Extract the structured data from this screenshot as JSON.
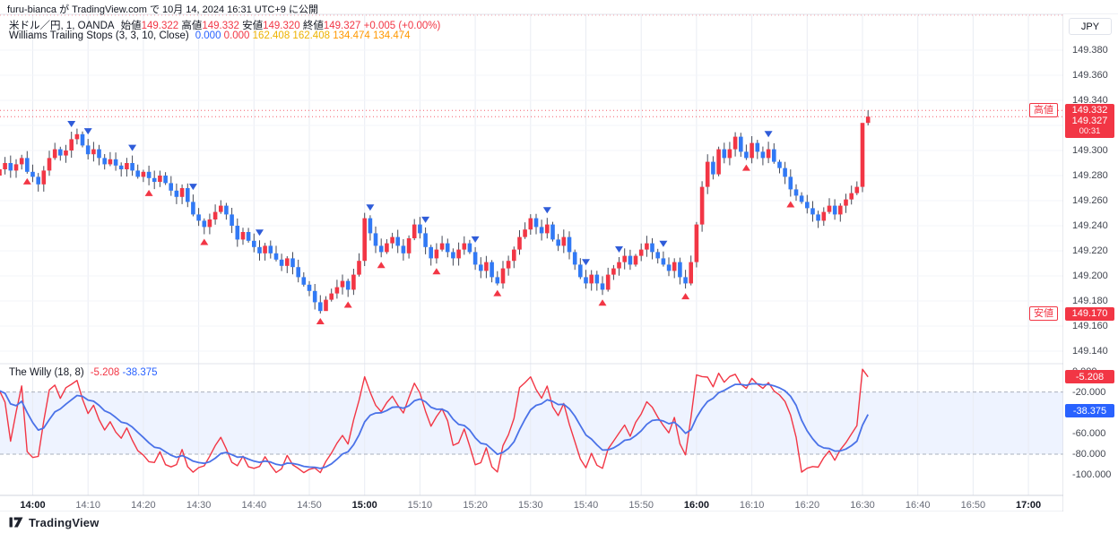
{
  "header": {
    "publish_line": "furu-bianca が TradingView.com で 10月 14, 2024 16:31 UTC+9 に公開"
  },
  "legend": {
    "symbol": "米ドル／円, 1, OANDA",
    "ohlc": [
      {
        "label": "始値",
        "value": "149.322"
      },
      {
        "label": "高値",
        "value": "149.332"
      },
      {
        "label": "安値",
        "value": "149.320"
      },
      {
        "label": "終値",
        "value": "149.327"
      }
    ],
    "change": "+0.005 (+0.00%)",
    "change_color": "#f23645",
    "value_color": "#f23645",
    "indicator": {
      "name": "Williams Trailing Stops (3, 3, 10, Close)",
      "values": [
        {
          "text": "0.000",
          "color": "#2962ff"
        },
        {
          "text": "0.000",
          "color": "#f23645"
        },
        {
          "text": "162.408",
          "color": "#edb200"
        },
        {
          "text": "162.408",
          "color": "#edb200"
        },
        {
          "text": "134.474",
          "color": "#ff9800"
        },
        {
          "text": "134.474",
          "color": "#ff9800"
        }
      ]
    }
  },
  "willy_legend": {
    "name": "The Willy (18, 8)",
    "values": [
      {
        "text": "-5.208",
        "color": "#f23645"
      },
      {
        "text": "-38.375",
        "color": "#2962ff"
      }
    ]
  },
  "price_axis": {
    "currency": "JPY",
    "ticks": [
      149.38,
      149.36,
      149.34,
      149.3,
      149.28,
      149.26,
      149.24,
      149.22,
      149.2,
      149.18,
      149.16,
      149.14
    ],
    "high_badge": {
      "label": "高値",
      "value": "149.332",
      "price": 149.332
    },
    "last_badge": {
      "value": "149.327",
      "countdown": "00:31",
      "price": 149.327
    },
    "low_badge": {
      "label": "安値",
      "value": "149.170",
      "price": 149.17
    }
  },
  "willy_axis": {
    "ticks": [
      0,
      -20,
      -60,
      -80,
      -100
    ],
    "red_badge": {
      "value": "-5.208",
      "level": -5.208
    },
    "blue_badge": {
      "value": "-38.375",
      "level": -38.375
    }
  },
  "time_axis": {
    "labels": [
      {
        "t": "14:00",
        "hour": true
      },
      {
        "t": "14:10",
        "hour": false
      },
      {
        "t": "14:20",
        "hour": false
      },
      {
        "t": "14:30",
        "hour": false
      },
      {
        "t": "14:40",
        "hour": false
      },
      {
        "t": "14:50",
        "hour": false
      },
      {
        "t": "15:00",
        "hour": true
      },
      {
        "t": "15:10",
        "hour": false
      },
      {
        "t": "15:20",
        "hour": false
      },
      {
        "t": "15:30",
        "hour": false
      },
      {
        "t": "15:40",
        "hour": false
      },
      {
        "t": "15:50",
        "hour": false
      },
      {
        "t": "16:00",
        "hour": true
      },
      {
        "t": "16:10",
        "hour": false
      },
      {
        "t": "16:20",
        "hour": false
      },
      {
        "t": "16:30",
        "hour": false
      },
      {
        "t": "16:40",
        "hour": false
      },
      {
        "t": "16:50",
        "hour": false
      },
      {
        "t": "17:00",
        "hour": true
      }
    ]
  },
  "footer": {
    "brand": "TradingView"
  },
  "colors": {
    "up": "#f23645",
    "down": "#3179f5",
    "wick": "#454a57",
    "sell_marker": "#2f5cd9",
    "buy_marker": "#f23645",
    "willy_fast": "#f23645",
    "willy_slow": "#4a72e8",
    "band_fill": "rgba(41,98,255,0.08)",
    "band_edge": "#aab0bd",
    "grid_v": "#e9ecf3",
    "grid_h": "#f3f5fa",
    "frame": "#e0e3eb"
  },
  "chart_data": {
    "type": "candlestick",
    "panes": [
      {
        "name": "price",
        "symbol": "米ドル／円 (USD/JPY), 1分足, OANDA",
        "start_time": "13:54",
        "step_minutes": 1,
        "close": [
          149.285,
          149.29,
          149.284,
          149.289,
          149.294,
          149.283,
          149.279,
          149.273,
          149.284,
          149.294,
          149.301,
          149.296,
          149.3,
          149.309,
          149.313,
          149.304,
          149.297,
          149.301,
          149.294,
          149.289,
          149.293,
          149.288,
          149.285,
          149.29,
          149.284,
          149.279,
          149.283,
          149.278,
          149.275,
          149.28,
          149.274,
          149.268,
          149.263,
          149.27,
          149.259,
          149.249,
          149.244,
          149.239,
          149.245,
          149.251,
          149.256,
          149.249,
          149.24,
          149.229,
          149.235,
          149.228,
          149.223,
          149.218,
          149.224,
          149.218,
          149.213,
          149.208,
          149.214,
          149.207,
          149.199,
          149.193,
          149.188,
          149.179,
          149.172,
          149.181,
          149.186,
          149.191,
          149.196,
          149.189,
          149.201,
          149.212,
          149.246,
          149.234,
          149.224,
          149.219,
          149.226,
          149.231,
          149.224,
          149.218,
          149.23,
          149.241,
          149.234,
          149.223,
          149.214,
          149.221,
          149.226,
          149.219,
          149.214,
          149.221,
          149.226,
          149.219,
          149.209,
          149.204,
          149.211,
          149.199,
          149.194,
          149.206,
          149.212,
          149.221,
          149.231,
          149.237,
          149.246,
          149.239,
          149.234,
          149.241,
          149.229,
          149.224,
          149.231,
          149.219,
          149.209,
          149.199,
          149.194,
          149.201,
          149.194,
          149.189,
          149.201,
          149.206,
          149.211,
          149.216,
          149.209,
          149.216,
          149.221,
          149.226,
          149.219,
          149.214,
          149.209,
          149.204,
          149.211,
          149.199,
          149.194,
          149.211,
          149.241,
          149.271,
          149.291,
          149.281,
          149.301,
          149.294,
          149.301,
          149.311,
          149.299,
          149.294,
          149.306,
          149.299,
          149.294,
          149.301,
          149.291,
          149.286,
          149.279,
          149.269,
          149.264,
          149.259,
          149.254,
          149.249,
          149.244,
          149.251,
          149.256,
          149.249,
          149.256,
          149.261,
          149.266,
          149.271,
          149.322,
          149.327
        ],
        "last_ohlc": {
          "open": 149.322,
          "high": 149.332,
          "low": 149.32,
          "close": 149.327
        },
        "session_high": 149.332,
        "session_low": 149.17,
        "session_low_time": "14:52",
        "sell_marker_times": [
          "14:07",
          "14:10",
          "14:18",
          "14:29",
          "14:41",
          "15:01",
          "15:11",
          "15:20",
          "15:33",
          "15:40",
          "15:46",
          "15:54",
          "16:13"
        ],
        "buy_marker_times": [
          "13:59",
          "14:21",
          "14:31",
          "14:52",
          "14:57",
          "15:03",
          "15:13",
          "15:24",
          "15:43",
          "15:58",
          "16:09",
          "16:17"
        ],
        "ylim": [
          149.131,
          149.409
        ],
        "yticks_step": 0.02,
        "high_line": 149.332,
        "last_line": 149.327
      },
      {
        "name": "oscillator",
        "title": "The Willy (18, 8)",
        "series": [
          {
            "name": "willy",
            "color": "#f23645",
            "last": -5.208,
            "derived": "Williams %R, length 18, of price pane"
          },
          {
            "name": "willy_ema",
            "color": "#4a72e8",
            "last": -38.375,
            "derived": "EMA(8) of willy"
          }
        ],
        "band": [
          -20,
          -80
        ],
        "ylim": [
          -119,
          6
        ],
        "yticks": [
          0,
          -20,
          -40,
          -60,
          -80,
          -100
        ]
      }
    ],
    "x_axis": {
      "first_label": "14:00",
      "last_label": "17:00",
      "step": "10min"
    },
    "grid": true,
    "legend_position": "top-left"
  }
}
